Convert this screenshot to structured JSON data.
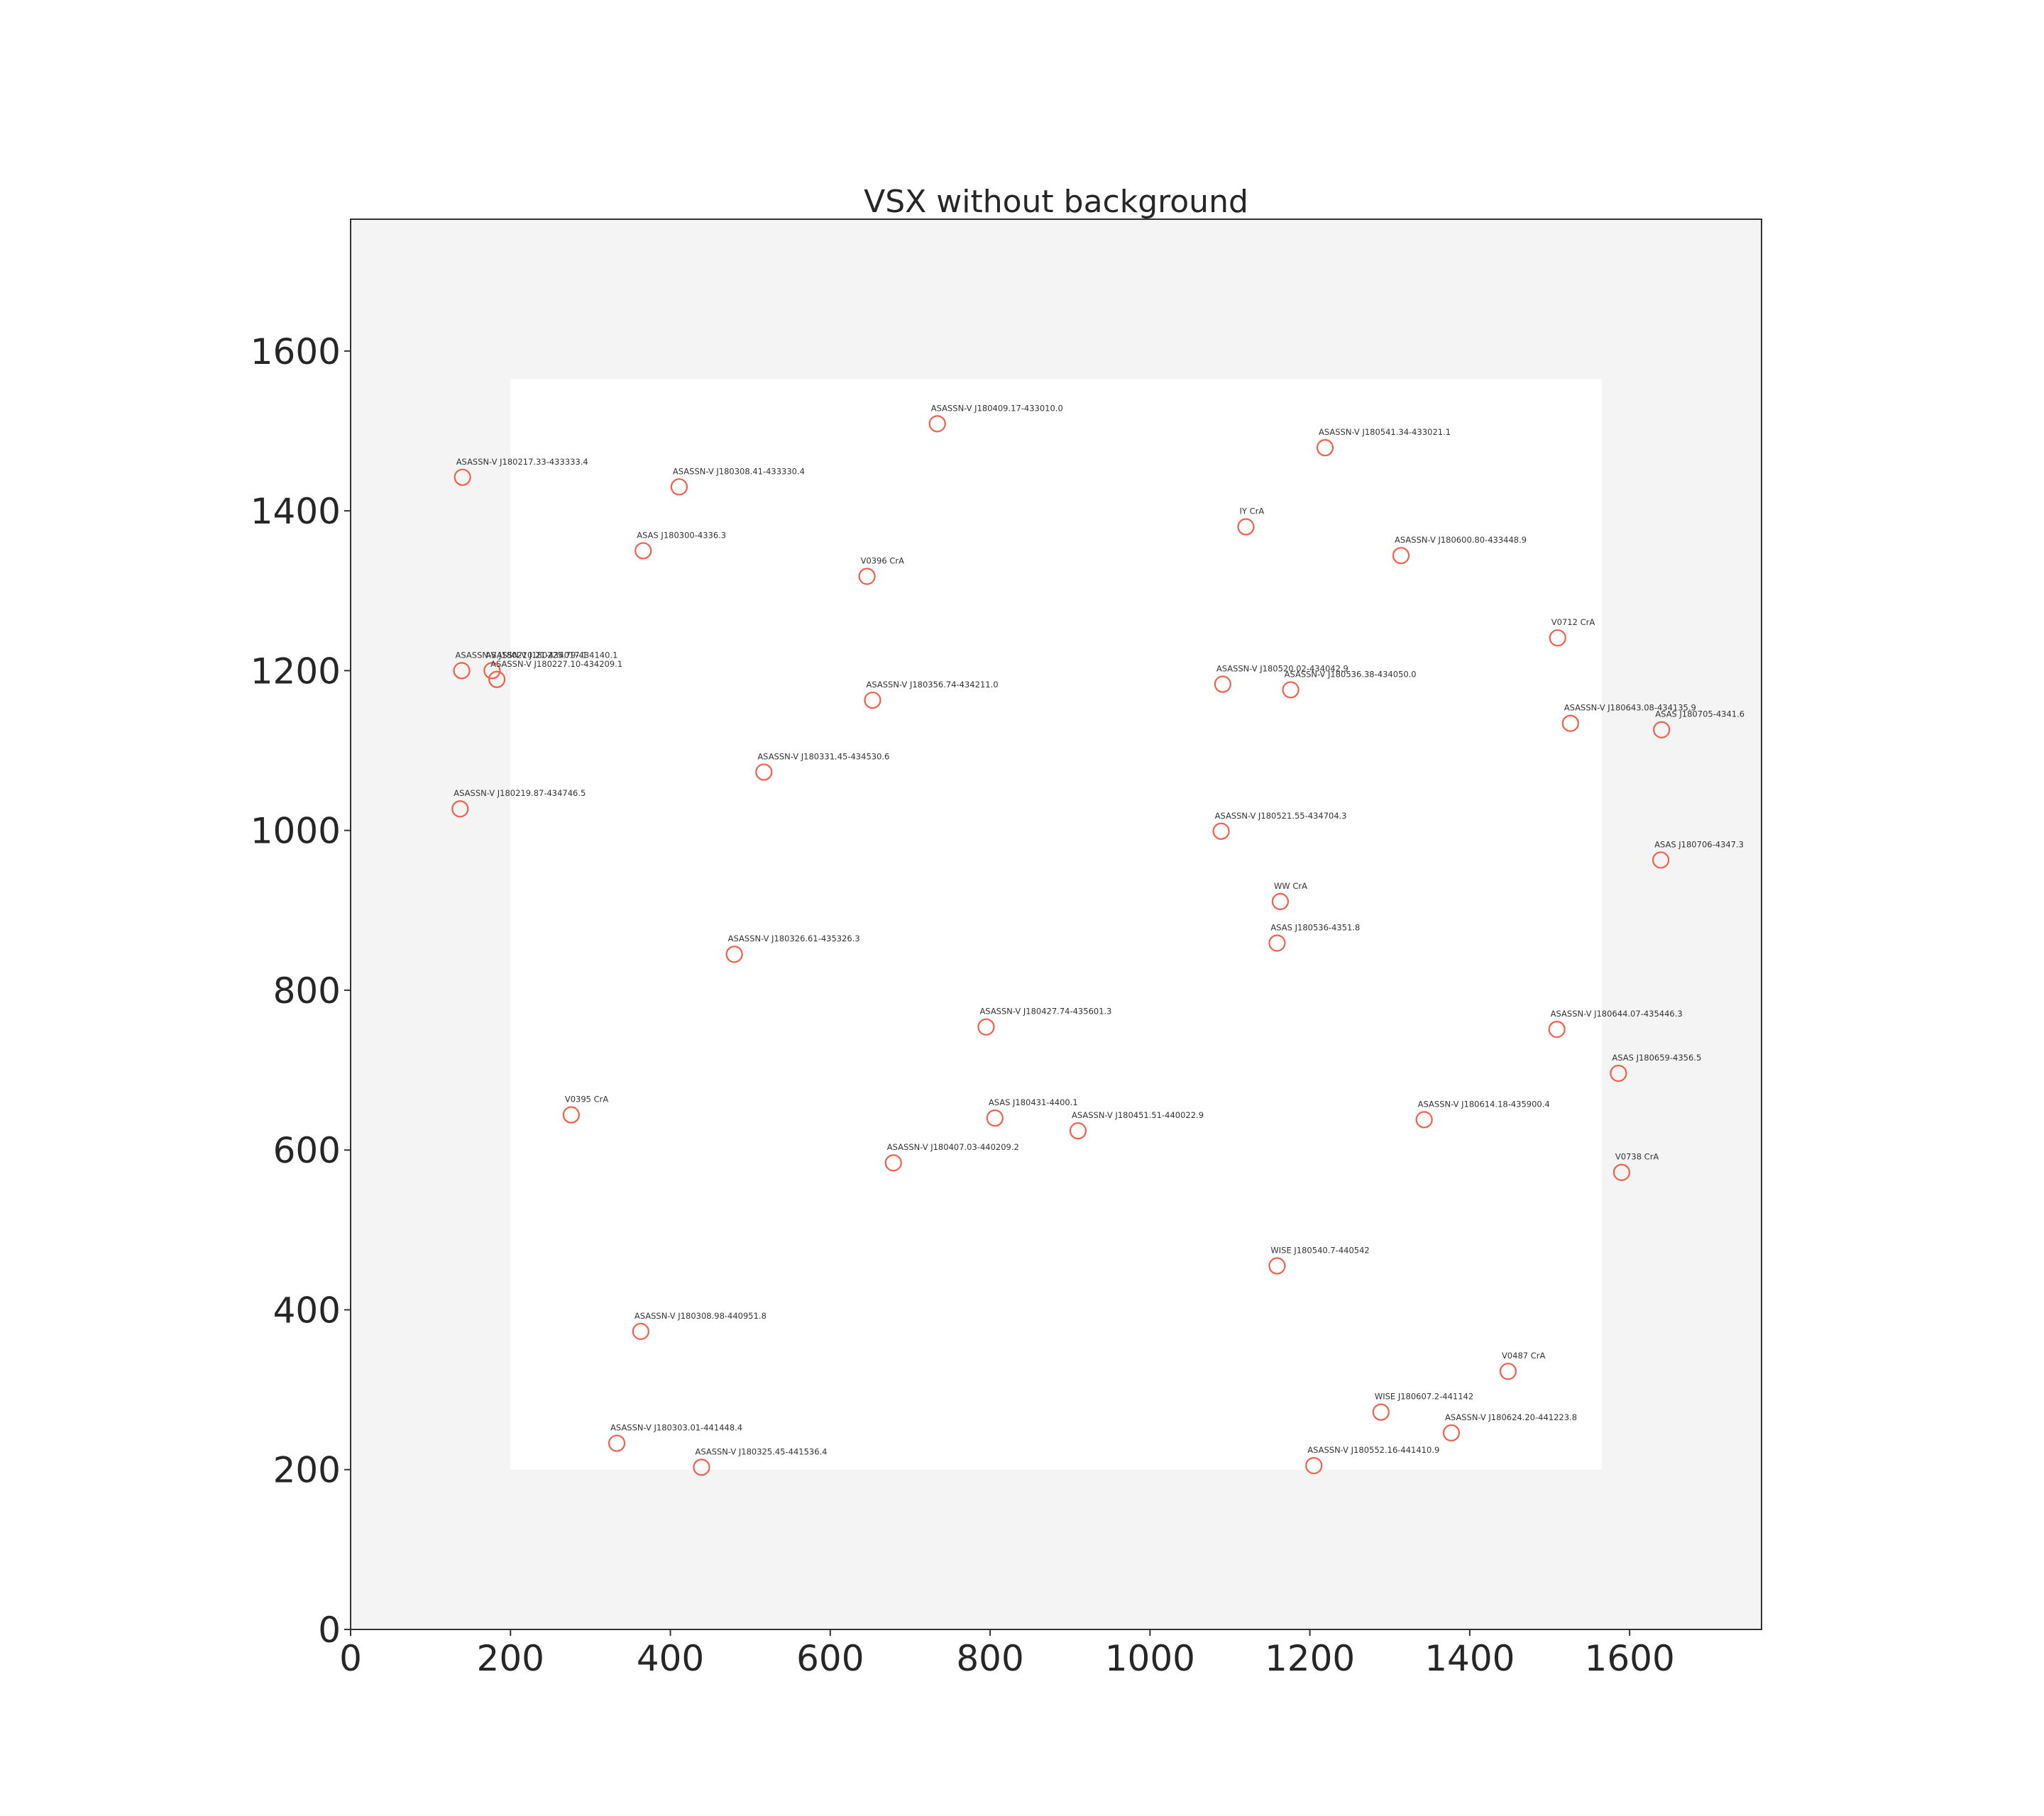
{
  "chart_data": {
    "type": "scatter",
    "title": "VSX without background",
    "xlabel": "",
    "ylabel": "",
    "xlim": [
      0,
      1765
    ],
    "ylim": [
      0,
      1765
    ],
    "xticks": [
      0,
      200,
      400,
      600,
      800,
      1000,
      1200,
      1400,
      1600
    ],
    "yticks": [
      0,
      200,
      400,
      600,
      800,
      1000,
      1200,
      1400,
      1600
    ],
    "grid": false,
    "background_color": "#f4f4f4",
    "inner_region_color": "#ffffff",
    "inner_region": {
      "x": [
        200,
        1565
      ],
      "y": [
        200,
        1565
      ]
    },
    "marker_color": "#f0604c",
    "points": [
      {
        "x": 734,
        "y": 1509,
        "label": "ASASSN-V J180409.17-433010.0"
      },
      {
        "x": 1219,
        "y": 1479,
        "label": "ASASSN-V J180541.34-433021.1"
      },
      {
        "x": 140,
        "y": 1442,
        "label": "ASASSN-V J180217.33-433333.4"
      },
      {
        "x": 411,
        "y": 1430,
        "label": "ASASSN-V J180308.41-433330.4"
      },
      {
        "x": 1120,
        "y": 1380,
        "label": "IY CrA"
      },
      {
        "x": 366,
        "y": 1350,
        "label": "ASAS J180300-4336.3"
      },
      {
        "x": 1314,
        "y": 1344,
        "label": "ASASSN-V J180600.80-433448.9"
      },
      {
        "x": 646,
        "y": 1318,
        "label": "V0396 CrA"
      },
      {
        "x": 1510,
        "y": 1241,
        "label": "V0712 CrA"
      },
      {
        "x": 139,
        "y": 1200,
        "label": "ASASSN-V J180210.21-434017.1"
      },
      {
        "x": 177,
        "y": 1200,
        "label": "ASASSN-V J180225.79-434140.1"
      },
      {
        "x": 183,
        "y": 1189,
        "label": "ASASSN-V J180227.10-434209.1"
      },
      {
        "x": 1091,
        "y": 1183,
        "label": "ASASSN-V J180520.02-434042.9"
      },
      {
        "x": 1176,
        "y": 1176,
        "label": "ASASSN-V J180536.38-434050.0"
      },
      {
        "x": 653,
        "y": 1163,
        "label": "ASASSN-V J180356.74-434211.0"
      },
      {
        "x": 1526,
        "y": 1134,
        "label": "ASASSN-V J180643.08-434135.9"
      },
      {
        "x": 1640,
        "y": 1126,
        "label": "ASAS J180705-4341.6"
      },
      {
        "x": 517,
        "y": 1073,
        "label": "ASASSN-V J180331.45-434530.6"
      },
      {
        "x": 137,
        "y": 1027,
        "label": "ASASSN-V J180219.87-434746.5"
      },
      {
        "x": 1089,
        "y": 999,
        "label": "ASASSN-V J180521.55-434704.3"
      },
      {
        "x": 1639,
        "y": 963,
        "label": "ASAS J180706-4347.3"
      },
      {
        "x": 1163,
        "y": 911,
        "label": "WW CrA"
      },
      {
        "x": 1159,
        "y": 859,
        "label": "ASAS J180536-4351.8"
      },
      {
        "x": 480,
        "y": 845,
        "label": "ASASSN-V J180326.61-435326.3"
      },
      {
        "x": 795,
        "y": 754,
        "label": "ASASSN-V J180427.74-435601.3"
      },
      {
        "x": 1509,
        "y": 751,
        "label": "ASASSN-V J180644.07-435446.3"
      },
      {
        "x": 1586,
        "y": 696,
        "label": "ASAS J180659-4356.5"
      },
      {
        "x": 276,
        "y": 644,
        "label": "V0395 CrA"
      },
      {
        "x": 806,
        "y": 640,
        "label": "ASAS J180431-4400.1"
      },
      {
        "x": 1343,
        "y": 638,
        "label": "ASASSN-V J180614.18-435900.4"
      },
      {
        "x": 910,
        "y": 624,
        "label": "ASASSN-V J180451.51-440022.9"
      },
      {
        "x": 1590,
        "y": 572,
        "label": "V0738 CrA"
      },
      {
        "x": 679,
        "y": 584,
        "label": "ASASSN-V J180407.03-440209.2"
      },
      {
        "x": 1159,
        "y": 455,
        "label": "WISE J180540.7-440542"
      },
      {
        "x": 363,
        "y": 373,
        "label": "ASASSN-V J180308.98-440951.8"
      },
      {
        "x": 1448,
        "y": 323,
        "label": "V0487 CrA"
      },
      {
        "x": 1289,
        "y": 272,
        "label": "WISE J180607.2-441142"
      },
      {
        "x": 1377,
        "y": 246,
        "label": "ASASSN-V J180624.20-441223.8"
      },
      {
        "x": 333,
        "y": 233,
        "label": "ASASSN-V J180303.01-441448.4"
      },
      {
        "x": 439,
        "y": 203,
        "label": "ASASSN-V J180325.45-441536.4"
      },
      {
        "x": 1205,
        "y": 205,
        "label": "ASASSN-V J180552.16-441410.9"
      }
    ]
  }
}
